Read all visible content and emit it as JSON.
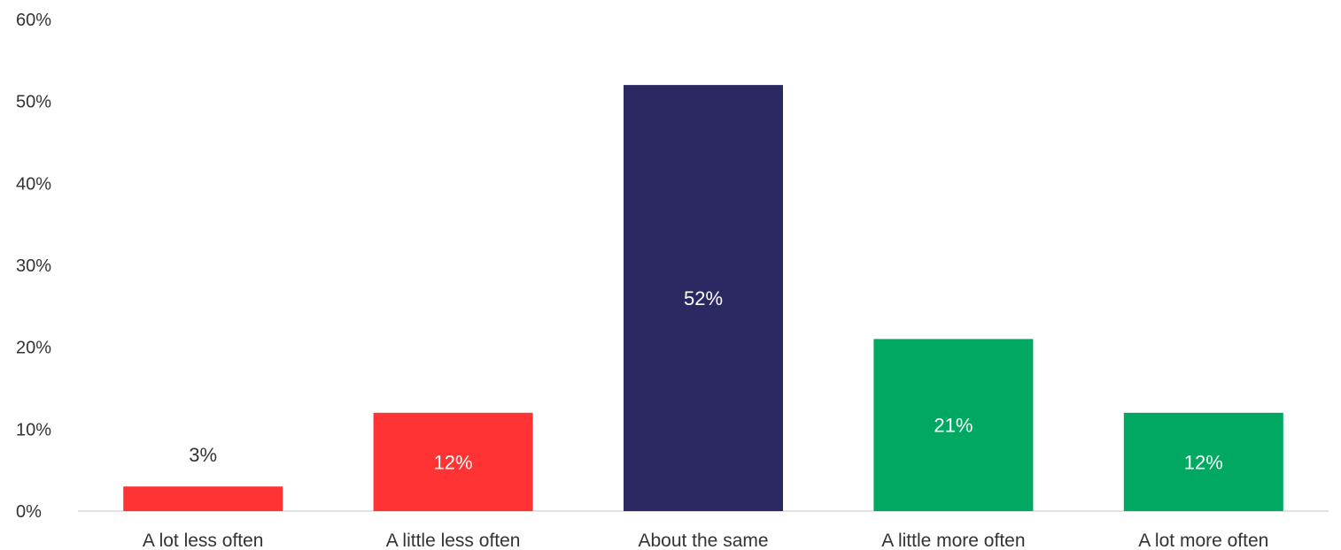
{
  "chart_data": {
    "type": "bar",
    "title": "",
    "xlabel": "",
    "ylabel": "",
    "categories": [
      "A lot less often",
      "A little less often",
      "About the same",
      "A little more often",
      "A lot more often"
    ],
    "values": [
      3,
      12,
      52,
      21,
      12
    ],
    "value_labels": [
      "3%",
      "12%",
      "52%",
      "21%",
      "12%"
    ],
    "bar_colors": [
      "#ff3333",
      "#ff3333",
      "#2b2862",
      "#00a862",
      "#00a862"
    ],
    "ylim": [
      0,
      60
    ],
    "y_ticks": [
      0,
      10,
      20,
      30,
      40,
      50,
      60
    ],
    "y_tick_labels": [
      "0%",
      "10%",
      "20%",
      "30%",
      "40%",
      "50%",
      "60%"
    ],
    "grid": false,
    "legend": "none"
  }
}
